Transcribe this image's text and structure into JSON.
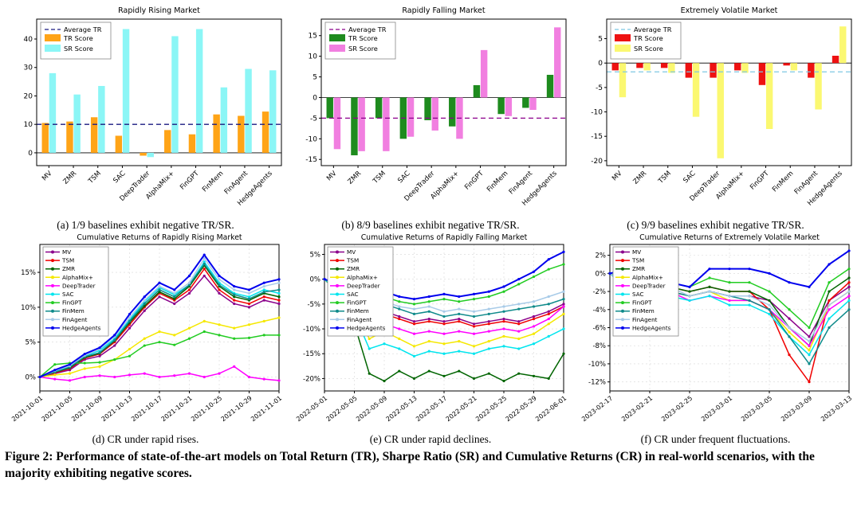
{
  "figure_caption": "Figure 2: Performance of state-of-the-art models on Total Return (TR), Sharpe Ratio (SR) and Cumulative Returns (CR) in real-world scenarios, with the majority exhibiting negative scores.",
  "chart_data": [
    {
      "id": "a",
      "type": "bar",
      "title": "Rapidly Rising Market",
      "caption": "(a) 1/9 baselines exhibit negative TR/SR.",
      "categories": [
        "MV",
        "ZMR",
        "TSM",
        "SAC",
        "DeepTrader",
        "AlphaMix+",
        "FinGPT",
        "FinMem",
        "FinAgent",
        "HedgeAgents"
      ],
      "series": [
        {
          "name": "TR Score",
          "color": "#FFA417",
          "values": [
            10.5,
            11,
            12.5,
            6,
            -1,
            8,
            6.5,
            13.5,
            13,
            14.5
          ]
        },
        {
          "name": "SR Score",
          "color": "#8BF6F6",
          "values": [
            28,
            20.5,
            23.5,
            43.5,
            -1.5,
            41,
            43.5,
            23,
            29.5,
            29
          ]
        }
      ],
      "average": {
        "label": "Average TR",
        "value": 10,
        "color": "#1A1A80",
        "style": "dashed"
      },
      "yticks": [
        0,
        10,
        20,
        30,
        40
      ],
      "ytick_suffix": "",
      "ylim": [
        -4.5,
        47
      ],
      "legend_position": "top-left",
      "grid": false
    },
    {
      "id": "b",
      "type": "bar",
      "title": "Rapidly Falling Market",
      "caption": "(b) 8/9 baselines exhibit negative TR/SR.",
      "categories": [
        "MV",
        "ZMR",
        "TSM",
        "SAC",
        "DeepTrader",
        "AlphaMix+",
        "FinGPT",
        "FinMem",
        "FinAgent",
        "HedgeAgents"
      ],
      "series": [
        {
          "name": "TR Score",
          "color": "#1E8B1E",
          "values": [
            -5,
            -14,
            -5,
            -10,
            -5.5,
            -7,
            3,
            -4,
            -2.5,
            5.5
          ]
        },
        {
          "name": "SR Score",
          "color": "#F17FE0",
          "values": [
            -12.5,
            -13,
            -13,
            -9.5,
            -8,
            -10,
            11.5,
            -4.5,
            -3,
            17
          ]
        }
      ],
      "average": {
        "label": "Average TR",
        "value": -5,
        "color": "#8B008B",
        "style": "dashed"
      },
      "yticks": [
        -15,
        -10,
        -5,
        0,
        5,
        10,
        15
      ],
      "ytick_suffix": "",
      "ylim": [
        -16.5,
        19
      ],
      "legend_position": "top-left",
      "grid": false
    },
    {
      "id": "c",
      "type": "bar",
      "title": "Extremely Volatile Market",
      "caption": "(c) 9/9 baselines exhibit negative TR/SR.",
      "categories": [
        "MV",
        "ZMR",
        "TSM",
        "SAC",
        "DeepTrader",
        "AlphaMix+",
        "FinGPT",
        "FinMem",
        "FinAgent",
        "HedgeAgents"
      ],
      "series": [
        {
          "name": "TR Score",
          "color": "#EE1111",
          "values": [
            -1.5,
            -1,
            -1,
            -3,
            -3,
            -1.5,
            -4.5,
            -0.5,
            -3,
            1.5
          ]
        },
        {
          "name": "SR Score",
          "color": "#FBF871",
          "values": [
            -7,
            -1.5,
            -2,
            -11,
            -19.5,
            -2,
            -13.5,
            -1.5,
            -9.5,
            7.5
          ]
        }
      ],
      "average": {
        "label": "Average TR",
        "value": -1.8,
        "color": "#7EC8E3",
        "style": "dashed"
      },
      "yticks": [
        5,
        0,
        -5,
        -10,
        -15,
        -20
      ],
      "ytick_suffix": "",
      "ylim": [
        -21,
        9
      ],
      "legend_position": "top-left",
      "grid": false
    },
    {
      "id": "d",
      "type": "line",
      "title": "Cumulative Returns of Rapidly Rising Market",
      "caption": "(d) CR under rapid rises.",
      "x_tick_labels": [
        "2021-10-01",
        "2021-10-05",
        "2021-10-09",
        "2021-10-13",
        "2021-10-17",
        "2021-10-21",
        "2021-10-25",
        "2021-10-29",
        "2021-11-01"
      ],
      "yticks": [
        0,
        5,
        10,
        15
      ],
      "ytick_suffix": "%",
      "ylim": [
        -2,
        19
      ],
      "legend_position": "top-left",
      "grid": true,
      "series": [
        {
          "name": "MV",
          "color": "#8B008B",
          "values": [
            0,
            0.5,
            1.0,
            2.5,
            3.0,
            4.5,
            7.0,
            9.5,
            11.5,
            10.5,
            12.0,
            14.5,
            12.0,
            10.5,
            10.0,
            11.0,
            10.5
          ]
        },
        {
          "name": "TSM",
          "color": "#F00000",
          "values": [
            0,
            0.6,
            1.2,
            2.7,
            3.3,
            5.0,
            7.5,
            10.0,
            12.0,
            11.0,
            12.5,
            15.5,
            12.5,
            11.0,
            10.5,
            11.5,
            11.0
          ]
        },
        {
          "name": "ZMR",
          "color": "#006400",
          "values": [
            0,
            0.7,
            1.3,
            2.8,
            3.4,
            5.2,
            7.8,
            10.2,
            12.2,
            11.2,
            13.0,
            16.0,
            13.0,
            11.5,
            11.0,
            12.0,
            11.5
          ]
        },
        {
          "name": "AlphaMix+",
          "color": "#F5E800",
          "values": [
            0,
            0.3,
            0.5,
            1.2,
            1.5,
            2.5,
            4.0,
            5.5,
            6.5,
            6.0,
            7.0,
            8.0,
            7.5,
            7.0,
            7.5,
            8.0,
            8.5
          ]
        },
        {
          "name": "DeepTrader",
          "color": "#FF00FF",
          "values": [
            0,
            -0.3,
            -0.5,
            0,
            0.2,
            0,
            0.3,
            0.5,
            0,
            0.2,
            0.5,
            0,
            0.5,
            1.5,
            0,
            -0.3,
            -0.5
          ]
        },
        {
          "name": "SAC",
          "color": "#00E5EE",
          "values": [
            0,
            0.8,
            1.5,
            3.0,
            3.8,
            5.5,
            8.2,
            10.8,
            12.8,
            11.8,
            13.2,
            16.5,
            13.5,
            12.0,
            11.5,
            12.5,
            12.0
          ]
        },
        {
          "name": "FinGPT",
          "color": "#22CC22",
          "values": [
            0,
            1.8,
            2.0,
            2.0,
            2.1,
            2.5,
            3.0,
            4.5,
            5.0,
            4.6,
            5.5,
            6.5,
            6.0,
            5.5,
            5.6,
            6.0,
            6.0
          ]
        },
        {
          "name": "FinMem",
          "color": "#0E8A8A",
          "values": [
            0,
            0.7,
            1.4,
            2.9,
            3.5,
            5.3,
            8.0,
            10.5,
            12.5,
            11.5,
            13.2,
            16.2,
            13.2,
            11.8,
            11.2,
            12.2,
            12.5
          ]
        },
        {
          "name": "FinAgent",
          "color": "#A8CBE8",
          "values": [
            0,
            0.9,
            1.6,
            3.1,
            4.0,
            5.8,
            8.5,
            11.0,
            13.0,
            12.0,
            13.5,
            17.0,
            14.0,
            12.5,
            12.0,
            13.0,
            13.5
          ]
        },
        {
          "name": "HedgeAgents",
          "color": "#0000EE",
          "values": [
            0,
            1.0,
            1.8,
            3.3,
            4.2,
            6.0,
            9.0,
            11.5,
            13.5,
            12.5,
            14.5,
            17.5,
            14.5,
            13.0,
            12.5,
            13.5,
            14.0
          ]
        }
      ]
    },
    {
      "id": "e",
      "type": "line",
      "title": "Cumulative Returns of Rapidly Falling Market",
      "caption": "(e) CR under rapid declines.",
      "x_tick_labels": [
        "2022-05-01",
        "2022-05-05",
        "2022-05-09",
        "2022-05-13",
        "2022-05-17",
        "2022-05-21",
        "2022-05-25",
        "2022-05-29",
        "2022-06-01"
      ],
      "yticks": [
        5,
        0,
        -5,
        -10,
        -15,
        -20
      ],
      "ytick_suffix": "%",
      "ylim": [
        -22.5,
        7
      ],
      "legend_position": "top-left",
      "grid": true,
      "series": [
        {
          "name": "MV",
          "color": "#8B008B",
          "values": [
            0,
            -1.5,
            -4.0,
            -7.5,
            -6.5,
            -7.5,
            -8.5,
            -8.0,
            -8.5,
            -8.0,
            -9.0,
            -8.5,
            -8.0,
            -8.5,
            -7.5,
            -6.5,
            -5.0
          ]
        },
        {
          "name": "TSM",
          "color": "#F00000",
          "values": [
            0,
            -1.5,
            -4.5,
            -8.0,
            -7.0,
            -8.0,
            -9.0,
            -8.5,
            -9.0,
            -8.5,
            -9.5,
            -9.0,
            -8.5,
            -9.0,
            -8.0,
            -7.0,
            -5.5
          ]
        },
        {
          "name": "ZMR",
          "color": "#006400",
          "values": [
            0,
            -3.0,
            -9.0,
            -19.0,
            -20.5,
            -18.5,
            -20.0,
            -18.5,
            -19.5,
            -18.5,
            -20.0,
            -19.0,
            -20.5,
            -19.0,
            -19.5,
            -20.0,
            -15.0
          ]
        },
        {
          "name": "AlphaMix+",
          "color": "#F5E800",
          "values": [
            0,
            -2.0,
            -6.0,
            -12.0,
            -10.5,
            -12.0,
            -13.5,
            -12.5,
            -13.0,
            -12.5,
            -13.5,
            -12.5,
            -11.5,
            -12.0,
            -11.0,
            -9.0,
            -7.0
          ]
        },
        {
          "name": "DeepTrader",
          "color": "#FF00FF",
          "values": [
            0,
            -2.0,
            -5.0,
            -10.0,
            -9.0,
            -10.0,
            -11.0,
            -10.5,
            -11.0,
            -10.5,
            -11.0,
            -10.5,
            -10.0,
            -10.5,
            -9.5,
            -8.0,
            -5.5
          ]
        },
        {
          "name": "SAC",
          "color": "#00E5EE",
          "values": [
            0,
            -2.5,
            -7.0,
            -14.0,
            -13.0,
            -14.0,
            -15.5,
            -14.5,
            -15.0,
            -14.5,
            -15.0,
            -14.0,
            -13.5,
            -14.0,
            -13.0,
            -11.5,
            -10.0
          ]
        },
        {
          "name": "FinGPT",
          "color": "#22CC22",
          "values": [
            0,
            -1.5,
            -3.0,
            -4.5,
            -3.5,
            -4.5,
            -5.0,
            -4.5,
            -4.0,
            -4.5,
            -4.0,
            -3.5,
            -2.5,
            -1.0,
            0.5,
            2.0,
            3.0
          ]
        },
        {
          "name": "FinMem",
          "color": "#0E8A8A",
          "values": [
            0,
            -1.0,
            -3.0,
            -6.0,
            -5.0,
            -6.0,
            -7.0,
            -6.5,
            -7.5,
            -7.0,
            -7.5,
            -7.0,
            -6.5,
            -6.0,
            -5.5,
            -5.0,
            -4.0
          ]
        },
        {
          "name": "FinAgent",
          "color": "#A8CBE8",
          "values": [
            0,
            -1.0,
            -2.5,
            -5.0,
            -4.5,
            -5.5,
            -6.0,
            -5.5,
            -6.5,
            -6.0,
            -6.5,
            -6.0,
            -5.5,
            -5.0,
            -4.5,
            -3.5,
            -2.5
          ]
        },
        {
          "name": "HedgeAgents",
          "color": "#0000EE",
          "values": [
            0,
            -1.0,
            -2.5,
            -3.0,
            -2.5,
            -3.5,
            -4.0,
            -3.5,
            -3.0,
            -3.5,
            -3.0,
            -2.5,
            -1.5,
            0,
            1.5,
            4.0,
            5.5
          ]
        }
      ]
    },
    {
      "id": "f",
      "type": "line",
      "title": "Cumulative Returns of Extremely Volatile Market",
      "caption": "(f) CR under frequent fluctuations.",
      "x_tick_labels": [
        "2023-02-17",
        "2023-02-21",
        "2023-02-25",
        "2023-03-01",
        "2023-03-05",
        "2023-03-09",
        "2023-03-13"
      ],
      "yticks": [
        2,
        0,
        -2,
        -4,
        -6,
        -8,
        -10,
        -12
      ],
      "ytick_suffix": "%",
      "ylim": [
        -13,
        3.2
      ],
      "legend_position": "top-left",
      "grid": true,
      "series": [
        {
          "name": "MV",
          "color": "#8B008B",
          "values": [
            0,
            -1.5,
            -2.0,
            -2.0,
            -2.5,
            -2.0,
            -2.5,
            -2.5,
            -3.0,
            -5.0,
            -7.0,
            -3.0,
            -1.5
          ]
        },
        {
          "name": "TSM",
          "color": "#F00000",
          "values": [
            0,
            -1.5,
            -2.0,
            -1.5,
            -2.0,
            -1.5,
            -2.0,
            -2.0,
            -4.0,
            -9.0,
            -12.0,
            -3.0,
            -1.0
          ]
        },
        {
          "name": "ZMR",
          "color": "#006400",
          "values": [
            0,
            -1.5,
            -2.0,
            -1.5,
            -2.0,
            -1.5,
            -2.0,
            -2.0,
            -3.0,
            -6.0,
            -8.0,
            -2.0,
            -0.5
          ]
        },
        {
          "name": "AlphaMix+",
          "color": "#F5E800",
          "values": [
            0,
            -1.5,
            -2.5,
            -2.0,
            -2.5,
            -2.0,
            -3.0,
            -3.0,
            -4.0,
            -6.5,
            -8.5,
            -3.5,
            -2.0
          ]
        },
        {
          "name": "DeepTrader",
          "color": "#FF00FF",
          "values": [
            0,
            -2.0,
            -2.5,
            -2.0,
            -3.0,
            -2.5,
            -3.0,
            -3.0,
            -4.0,
            -6.0,
            -8.0,
            -4.0,
            -2.5
          ]
        },
        {
          "name": "SAC",
          "color": "#00E5EE",
          "values": [
            0,
            -2.0,
            -3.0,
            -2.5,
            -3.0,
            -2.5,
            -3.5,
            -3.5,
            -4.5,
            -7.0,
            -9.0,
            -5.0,
            -3.0
          ]
        },
        {
          "name": "FinGPT",
          "color": "#22CC22",
          "values": [
            0,
            -1.0,
            -1.5,
            -1.0,
            -1.5,
            -0.5,
            -1.0,
            -1.0,
            -2.0,
            -4.0,
            -6.0,
            -1.0,
            0.5
          ]
        },
        {
          "name": "FinMem",
          "color": "#0E8A8A",
          "values": [
            0,
            -1.5,
            -2.0,
            -2.0,
            -2.5,
            -2.0,
            -2.5,
            -3.0,
            -4.0,
            -7.0,
            -10.0,
            -6.0,
            -4.0
          ]
        },
        {
          "name": "FinAgent",
          "color": "#A8CBE8",
          "values": [
            0,
            -1.5,
            -2.0,
            -1.5,
            -2.5,
            -2.0,
            -2.5,
            -2.5,
            -3.5,
            -6.0,
            -7.5,
            -3.5,
            -2.0
          ]
        },
        {
          "name": "HedgeAgents",
          "color": "#0000EE",
          "values": [
            0,
            0.5,
            -1.5,
            -1.0,
            -1.5,
            0.5,
            0.5,
            0.5,
            0,
            -1.0,
            -1.5,
            1.0,
            2.5
          ]
        }
      ]
    }
  ]
}
